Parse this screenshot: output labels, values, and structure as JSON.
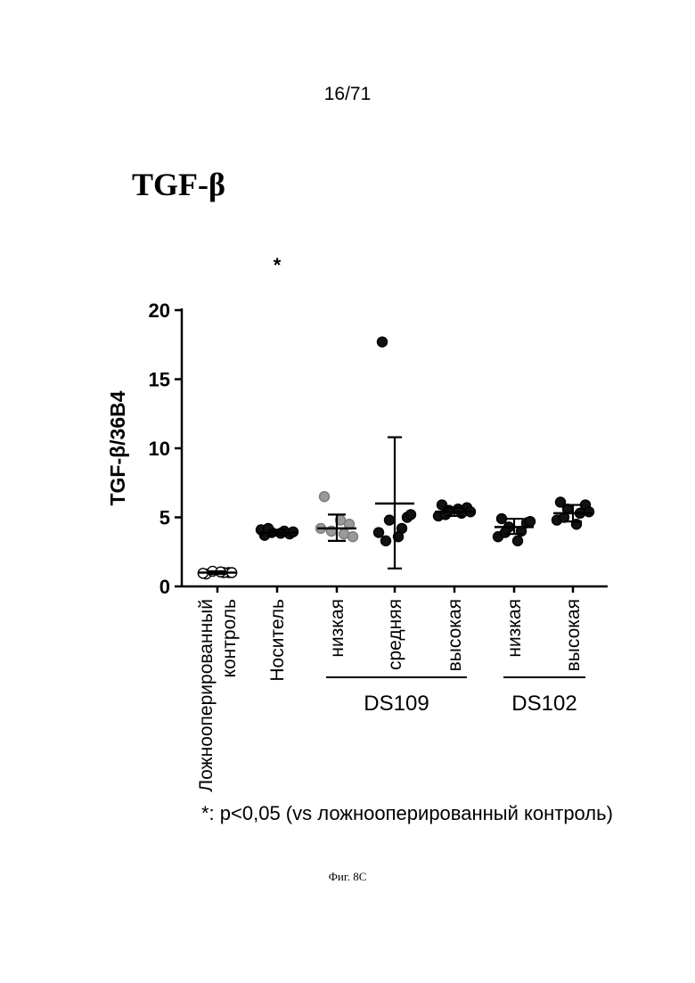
{
  "page": {
    "number": "16/71",
    "caption": "Фиг. 8С",
    "footnote": "*: p<0,05 (vs ложнооперированный контроль)"
  },
  "chart_data": {
    "type": "scatter",
    "title": "TGF-β",
    "ylabel": "TGF-β/36B4",
    "ylim": [
      0,
      20
    ],
    "yticks": [
      0,
      5,
      10,
      15,
      20
    ],
    "categories": [
      {
        "label_lines": [
          "Ложнооперированный",
          "контроль"
        ],
        "mean": 1.0,
        "sd_low": 0.9,
        "sd_high": 1.1,
        "points": [
          0.9,
          1.0,
          1.1,
          1.0,
          0.95,
          1.05,
          1.0
        ],
        "marker": "open",
        "significance": ""
      },
      {
        "label_lines": [
          "Носитель"
        ],
        "mean": 3.9,
        "sd_low": 3.7,
        "sd_high": 4.1,
        "points": [
          3.7,
          3.8,
          3.9,
          4.0,
          4.1,
          3.85,
          3.95,
          4.2
        ],
        "marker": "filled",
        "significance": "*"
      },
      {
        "label_lines": [
          "низкая"
        ],
        "mean": 4.2,
        "sd_low": 3.3,
        "sd_high": 5.2,
        "points": [
          6.5,
          4.5,
          4.0,
          3.8,
          4.2,
          4.8,
          3.6
        ],
        "marker": "gray",
        "significance": ""
      },
      {
        "label_lines": [
          "средняя"
        ],
        "mean": 6.0,
        "sd_low": 1.3,
        "sd_high": 10.8,
        "points": [
          17.7,
          5.0,
          4.8,
          4.2,
          3.9,
          3.6,
          5.2,
          3.3
        ],
        "marker": "filled",
        "significance": ""
      },
      {
        "label_lines": [
          "высокая"
        ],
        "mean": 5.4,
        "sd_low": 5.1,
        "sd_high": 5.7,
        "points": [
          5.9,
          5.7,
          5.5,
          5.3,
          5.1,
          5.6,
          5.4,
          5.2
        ],
        "marker": "filled",
        "significance": ""
      },
      {
        "label_lines": [
          "низкая"
        ],
        "mean": 4.3,
        "sd_low": 3.8,
        "sd_high": 4.9,
        "points": [
          4.9,
          4.6,
          4.3,
          4.0,
          3.6,
          3.3,
          4.7,
          3.9
        ],
        "marker": "filled",
        "significance": ""
      },
      {
        "label_lines": [
          "высокая"
        ],
        "mean": 5.3,
        "sd_low": 4.7,
        "sd_high": 5.9,
        "points": [
          6.1,
          5.9,
          5.6,
          5.3,
          4.8,
          4.5,
          5.4,
          5.0
        ],
        "marker": "filled",
        "significance": ""
      }
    ],
    "groups": [
      {
        "label": "DS109",
        "from": 2,
        "to": 4
      },
      {
        "label": "DS102",
        "from": 5,
        "to": 6
      }
    ],
    "colors": {
      "filled": "#111111",
      "gray": "#9a9a9a",
      "open": "#ffffff",
      "axis": "#000000"
    }
  }
}
